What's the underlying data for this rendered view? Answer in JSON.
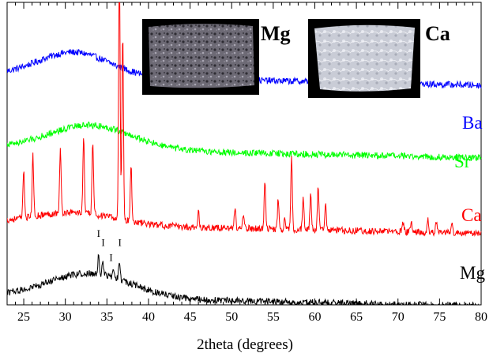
{
  "chart_data": {
    "type": "line",
    "xlabel": "2theta (degrees)",
    "ylabel": "",
    "xlim": [
      23,
      80
    ],
    "x_ticks": [
      25,
      30,
      35,
      40,
      45,
      50,
      55,
      60,
      65,
      70,
      75,
      80
    ],
    "y_ticks_shown": false,
    "grid": false,
    "series": [
      {
        "name": "Ba",
        "color": "#0000ff",
        "offset": 0.76,
        "amorphous_hump": {
          "center": 31,
          "width": 6,
          "height": 0.08
        },
        "peaks": []
      },
      {
        "name": "Sr",
        "color": "#00ff00",
        "offset": 0.52,
        "amorphous_hump": {
          "center": 33,
          "width": 7,
          "height": 0.08
        },
        "peaks": []
      },
      {
        "name": "Ca",
        "color": "#ff0000",
        "offset": 0.27,
        "amorphous_hump": {
          "center": 31,
          "width": 7,
          "height": 0.04
        },
        "peaks": [
          {
            "x": 25.0,
            "h": 0.16
          },
          {
            "x": 26.1,
            "h": 0.2
          },
          {
            "x": 29.4,
            "h": 0.21
          },
          {
            "x": 32.2,
            "h": 0.25
          },
          {
            "x": 33.3,
            "h": 0.24
          },
          {
            "x": 36.5,
            "h": 0.84
          },
          {
            "x": 36.9,
            "h": 0.62
          },
          {
            "x": 37.9,
            "h": 0.19
          },
          {
            "x": 46.0,
            "h": 0.05
          },
          {
            "x": 50.4,
            "h": 0.07
          },
          {
            "x": 51.4,
            "h": 0.04
          },
          {
            "x": 54.0,
            "h": 0.16
          },
          {
            "x": 55.6,
            "h": 0.1
          },
          {
            "x": 56.4,
            "h": 0.04
          },
          {
            "x": 57.2,
            "h": 0.25
          },
          {
            "x": 58.6,
            "h": 0.11
          },
          {
            "x": 59.5,
            "h": 0.12
          },
          {
            "x": 60.4,
            "h": 0.15
          },
          {
            "x": 61.3,
            "h": 0.09
          },
          {
            "x": 70.6,
            "h": 0.03
          },
          {
            "x": 71.6,
            "h": 0.04
          },
          {
            "x": 73.6,
            "h": 0.04
          },
          {
            "x": 74.6,
            "h": 0.04
          },
          {
            "x": 76.5,
            "h": 0.03
          }
        ]
      },
      {
        "name": "Mg",
        "color": "#000000",
        "offset": 0.03,
        "amorphous_hump": {
          "center": 33,
          "width": 7,
          "height": 0.08
        },
        "peaks": [
          {
            "x": 34.0,
            "h": 0.06
          },
          {
            "x": 34.5,
            "h": 0.05
          },
          {
            "x": 35.8,
            "h": 0.03
          },
          {
            "x": 36.5,
            "h": 0.06
          }
        ]
      }
    ],
    "peak_annotations": [
      {
        "label": "I",
        "x": 34.0,
        "y": 0.225
      },
      {
        "label": "I",
        "x": 34.55,
        "y": 0.195
      },
      {
        "label": "I",
        "x": 35.5,
        "y": 0.145
      },
      {
        "label": "I",
        "x": 36.55,
        "y": 0.195
      }
    ],
    "insets": [
      {
        "label": "Mg",
        "tone": "dark",
        "position": "top-center"
      },
      {
        "label": "Ca",
        "tone": "light",
        "position": "top-right"
      }
    ]
  }
}
